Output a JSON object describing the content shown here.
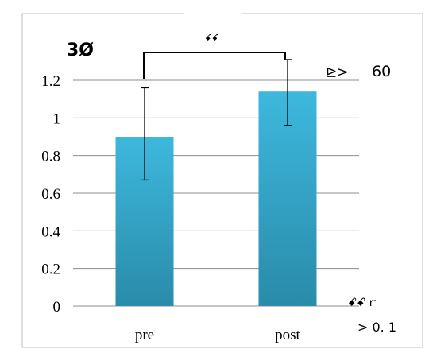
{
  "chart_data": {
    "type": "bar",
    "categories": [
      "pre",
      "post"
    ],
    "values": [
      0.9,
      1.14
    ],
    "error_low": [
      0.67,
      0.96
    ],
    "error_high": [
      1.16,
      1.31
    ],
    "ylim": [
      0,
      1.2
    ],
    "yticks": [
      "0",
      "0.2",
      "0.4",
      "0.6",
      "0.8",
      "1",
      "1.2"
    ],
    "grid": true,
    "legend": "none",
    "bar_color_top": "#3DB8DD",
    "bar_color_bottom": "#2A8BAA",
    "annotations": {
      "top_left": "3Ø",
      "significance": "ꗃꗃ",
      "right_glyph": "⊵>",
      "right_value": "60",
      "bottom_glyphs": "ꗃꗃ ꭈ",
      "bottom_text": "> 0. 1"
    }
  }
}
